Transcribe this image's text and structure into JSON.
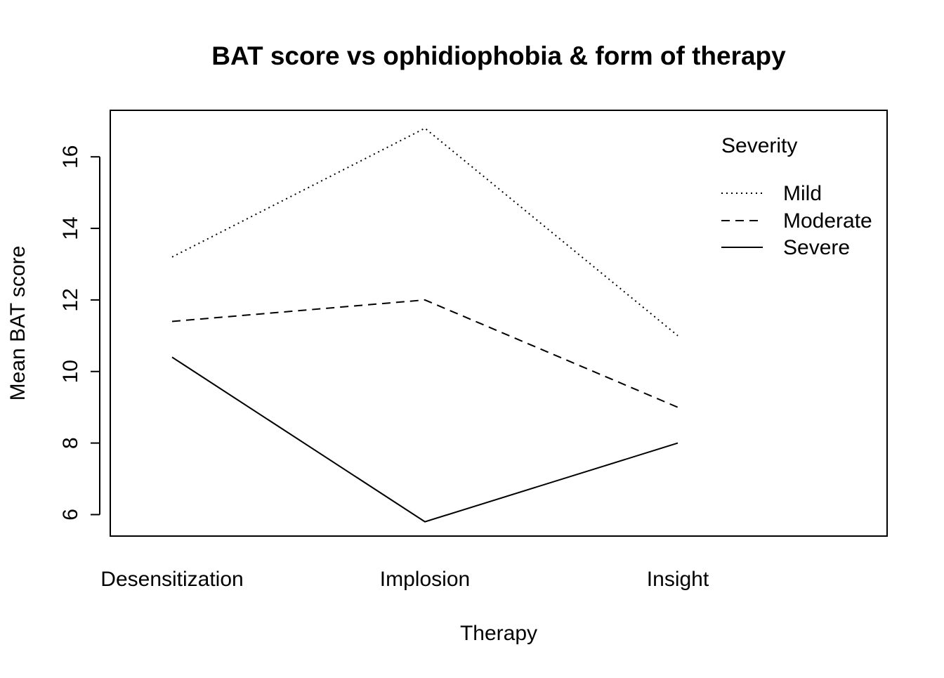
{
  "chart_data": {
    "type": "line",
    "title": "BAT score vs ophidiophobia & form of therapy",
    "xlabel": "Therapy",
    "ylabel": "Mean BAT score",
    "categories": [
      "Desensitization",
      "Implosion",
      "Insight"
    ],
    "ylim": [
      5.4,
      17.3
    ],
    "yticks": [
      "6",
      "8",
      "10",
      "12",
      "14",
      "16"
    ],
    "grid": false,
    "legend": {
      "title": "Severity",
      "placement": "top-right",
      "items": [
        "Mild",
        "Moderate",
        "Severe"
      ]
    },
    "series": [
      {
        "name": "Mild",
        "linestyle": "dotted",
        "values": [
          13.2,
          16.8,
          11.0
        ]
      },
      {
        "name": "Moderate",
        "linestyle": "dashed",
        "values": [
          11.4,
          12.0,
          9.0
        ]
      },
      {
        "name": "Severe",
        "linestyle": "solid",
        "values": [
          10.4,
          5.8,
          8.0
        ]
      }
    ],
    "colors": {
      "line": "#000000",
      "background": "#ffffff"
    }
  }
}
